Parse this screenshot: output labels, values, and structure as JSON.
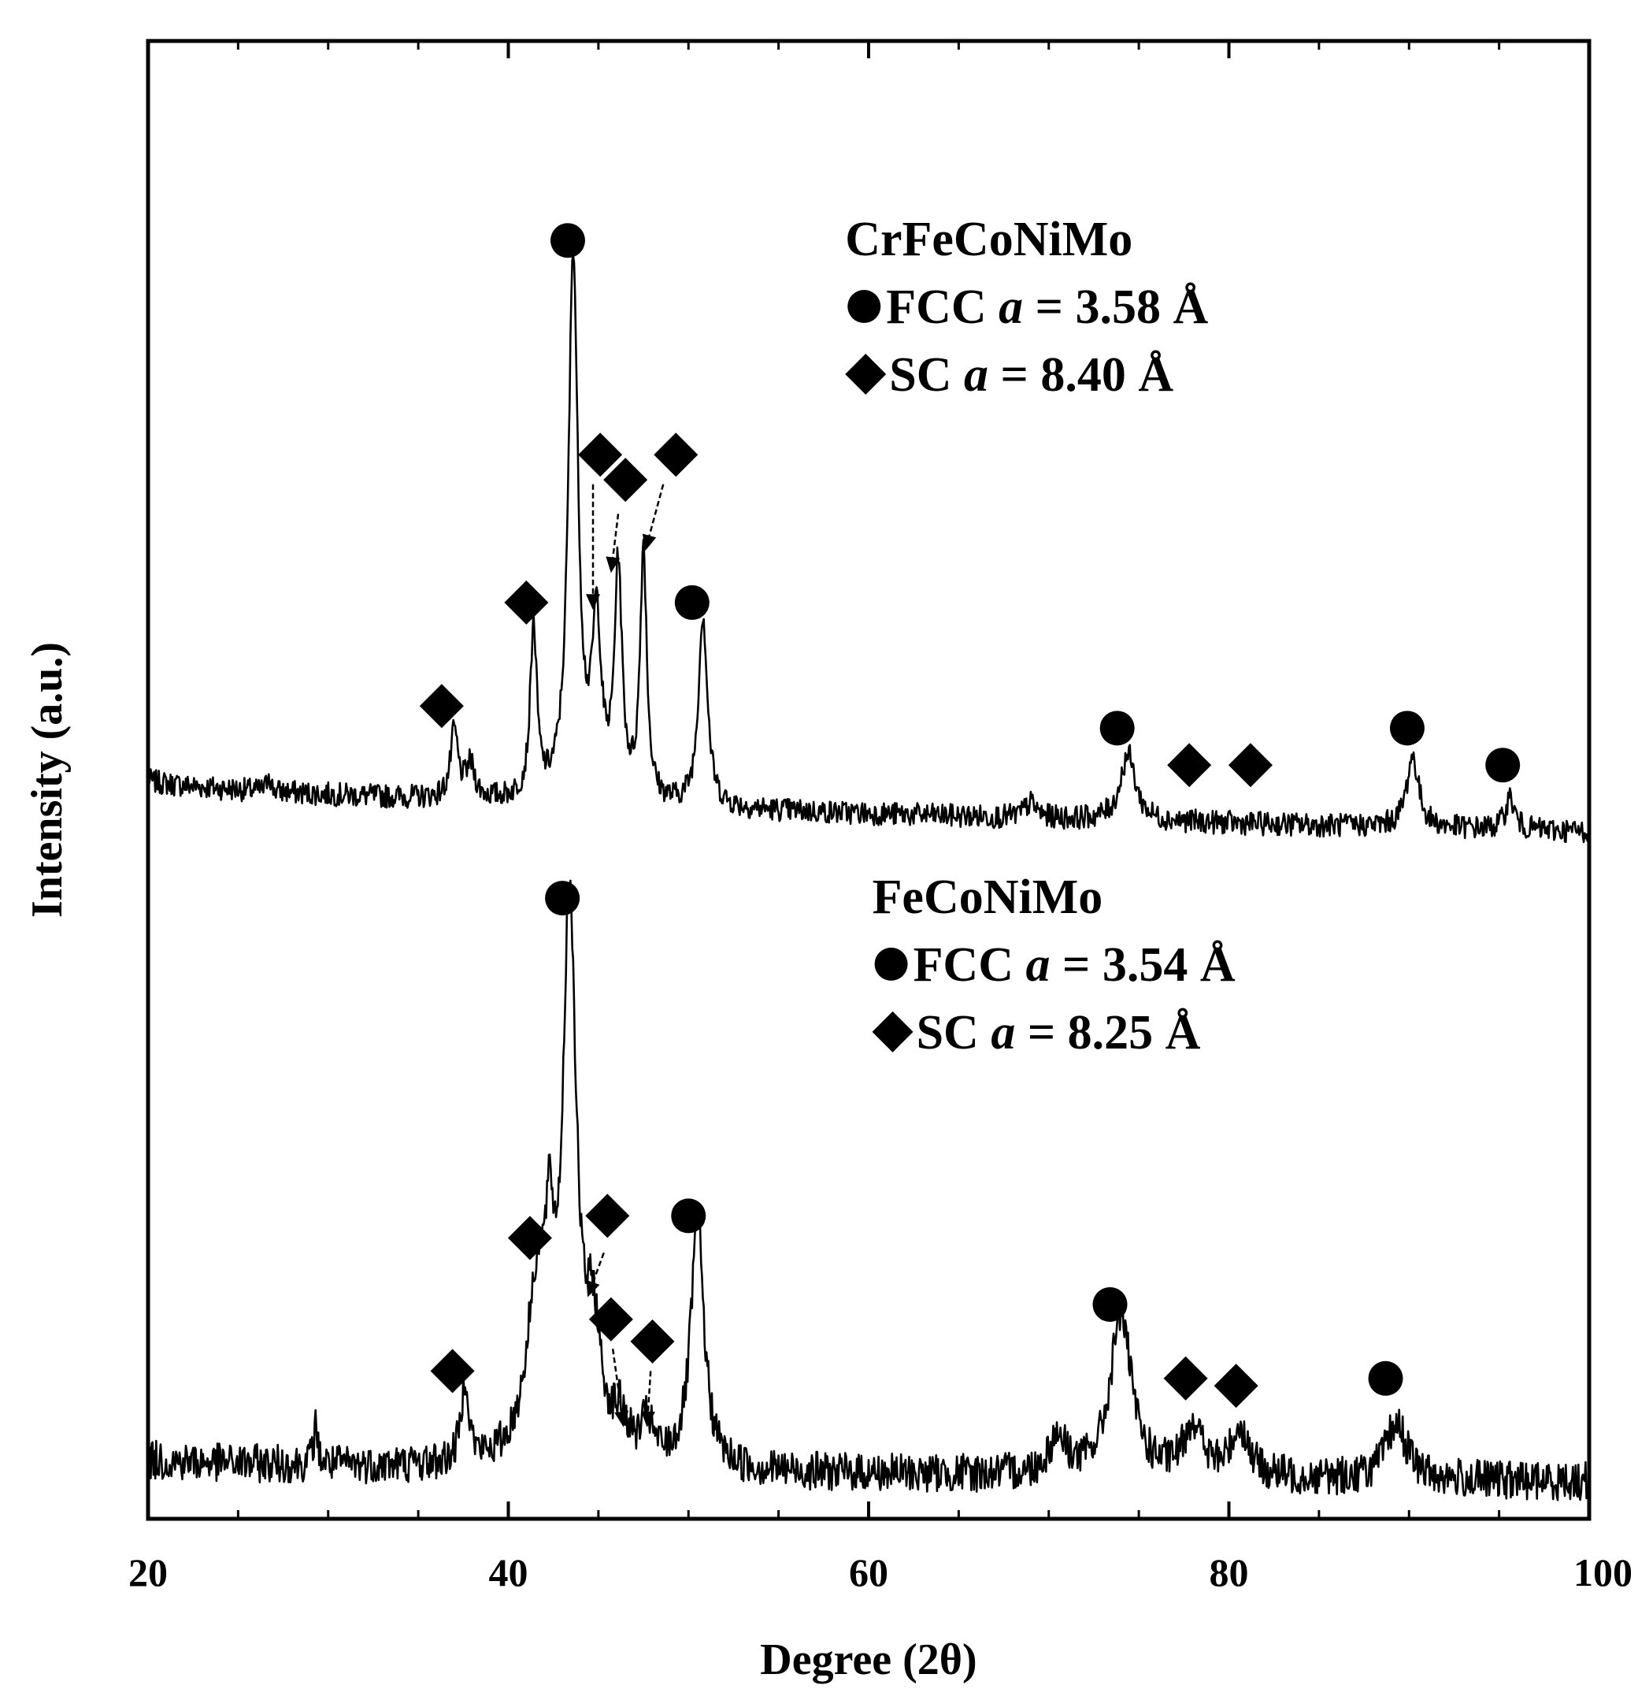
{
  "chart_data": {
    "type": "line",
    "xlabel": "Degree (2θ)",
    "ylabel": "Intensity (a.u.)",
    "xlim": [
      20,
      100
    ],
    "ylim": [
      0,
      100
    ],
    "x_ticks": [
      "20",
      "40",
      "60",
      "80",
      "100"
    ],
    "y_ticks_shown": false,
    "grid": false,
    "series": [
      {
        "name": "CrFeCoNiMo",
        "baseline": 47,
        "noise": 0.8,
        "start": 50,
        "end": 46.5,
        "peaks": [
          {
            "x": 26.7,
            "h": 1.4,
            "w": 0.1
          },
          {
            "x": 37.0,
            "h": 4.5,
            "w": 0.25
          },
          {
            "x": 37.9,
            "h": 2.2,
            "w": 0.3
          },
          {
            "x": 41.4,
            "h": 11.5,
            "w": 0.22
          },
          {
            "x": 43.6,
            "h": 37,
            "w": 0.32
          },
          {
            "x": 44.9,
            "h": 11.5,
            "w": 0.3
          },
          {
            "x": 46.1,
            "h": 15.5,
            "w": 0.25
          },
          {
            "x": 47.5,
            "h": 17,
            "w": 0.22
          },
          {
            "x": 50.8,
            "h": 13,
            "w": 0.3
          },
          {
            "x": 69.0,
            "h": 1.0,
            "w": 0.4
          },
          {
            "x": 74.4,
            "h": 4.5,
            "w": 0.5
          },
          {
            "x": 90.2,
            "h": 4.8,
            "w": 0.4
          },
          {
            "x": 95.6,
            "h": 2.2,
            "w": 0.3
          }
        ]
      },
      {
        "name": "FeCoNiMo",
        "baseline": 2.5,
        "noise": 1.3,
        "start": 4,
        "end": 2.5,
        "peaks": [
          {
            "x": 29.3,
            "h": 2.5,
            "w": 0.15
          },
          {
            "x": 37.6,
            "h": 5.8,
            "w": 0.25
          },
          {
            "x": 41.6,
            "h": 11,
            "w": 0.7
          },
          {
            "x": 42.3,
            "h": 9,
            "w": 0.3
          },
          {
            "x": 43.4,
            "h": 37,
            "w": 0.45
          },
          {
            "x": 44.7,
            "h": 8,
            "w": 0.5
          },
          {
            "x": 46.2,
            "h": 2.5,
            "w": 0.5
          },
          {
            "x": 47.7,
            "h": 2.5,
            "w": 0.4
          },
          {
            "x": 50.5,
            "h": 16.5,
            "w": 0.45
          },
          {
            "x": 70.5,
            "h": 2.5,
            "w": 0.6
          },
          {
            "x": 74.0,
            "h": 11,
            "w": 0.7
          },
          {
            "x": 78.0,
            "h": 3.5,
            "w": 0.6
          },
          {
            "x": 80.6,
            "h": 3.2,
            "w": 0.6
          },
          {
            "x": 89.3,
            "h": 3.8,
            "w": 0.7
          }
        ]
      }
    ],
    "markers": [
      {
        "shape": "circle",
        "x": 43.3,
        "y": 86.5
      },
      {
        "shape": "diamond",
        "x": 45.1,
        "y": 72.0
      },
      {
        "shape": "diamond",
        "x": 46.5,
        "y": 70.3
      },
      {
        "shape": "diamond",
        "x": 49.3,
        "y": 72.0
      },
      {
        "shape": "diamond",
        "x": 41.0,
        "y": 62.0
      },
      {
        "shape": "circle",
        "x": 50.2,
        "y": 62.0
      },
      {
        "shape": "diamond",
        "x": 36.3,
        "y": 55.0
      },
      {
        "shape": "circle",
        "x": 73.8,
        "y": 53.5
      },
      {
        "shape": "diamond",
        "x": 77.8,
        "y": 51.0
      },
      {
        "shape": "diamond",
        "x": 81.2,
        "y": 51.0
      },
      {
        "shape": "circle",
        "x": 89.9,
        "y": 53.5
      },
      {
        "shape": "circle",
        "x": 95.2,
        "y": 51.0
      },
      {
        "shape": "circle",
        "x": 43.0,
        "y": 42.0
      },
      {
        "shape": "diamond",
        "x": 41.2,
        "y": 19.0
      },
      {
        "shape": "diamond",
        "x": 45.5,
        "y": 20.5
      },
      {
        "shape": "circle",
        "x": 50.0,
        "y": 20.5
      },
      {
        "shape": "diamond",
        "x": 45.7,
        "y": 13.5
      },
      {
        "shape": "diamond",
        "x": 48.0,
        "y": 12.0
      },
      {
        "shape": "diamond",
        "x": 36.9,
        "y": 10.0
      },
      {
        "shape": "circle",
        "x": 73.4,
        "y": 14.5
      },
      {
        "shape": "diamond",
        "x": 77.6,
        "y": 9.5
      },
      {
        "shape": "diamond",
        "x": 80.4,
        "y": 9.0
      },
      {
        "shape": "circle",
        "x": 88.7,
        "y": 9.5
      }
    ],
    "arrows": [
      {
        "from": [
          44.7,
          70.0
        ],
        "to": [
          44.7,
          61.5
        ]
      },
      {
        "from": [
          46.1,
          68.0
        ],
        "to": [
          45.7,
          64.0
        ]
      },
      {
        "from": [
          48.6,
          70.0
        ],
        "to": [
          47.6,
          65.5
        ]
      },
      {
        "from": [
          45.3,
          18.0
        ],
        "to": [
          44.4,
          15.0
        ]
      },
      {
        "from": [
          45.8,
          11.5
        ],
        "to": [
          46.4,
          6.2
        ]
      },
      {
        "from": [
          47.9,
          10.0
        ],
        "to": [
          47.7,
          6.2
        ]
      }
    ],
    "legends": [
      {
        "sample": "CrFeCoNiMo",
        "x": 58.7,
        "y": 85.5,
        "fcc_prefix": "FCC",
        "fcc_var": "a",
        "fcc_value": "= 3.58 Å",
        "sc_prefix": "SC",
        "sc_var": "a",
        "sc_value": "= 8.40 Å"
      },
      {
        "sample": "FeCoNiMo",
        "x": 60.2,
        "y": 41.0,
        "fcc_prefix": "FCC",
        "fcc_var": "a",
        "fcc_value": "= 3.54 Å",
        "sc_prefix": "SC",
        "sc_var": "a",
        "sc_value": "= 8.25 Å"
      }
    ]
  }
}
